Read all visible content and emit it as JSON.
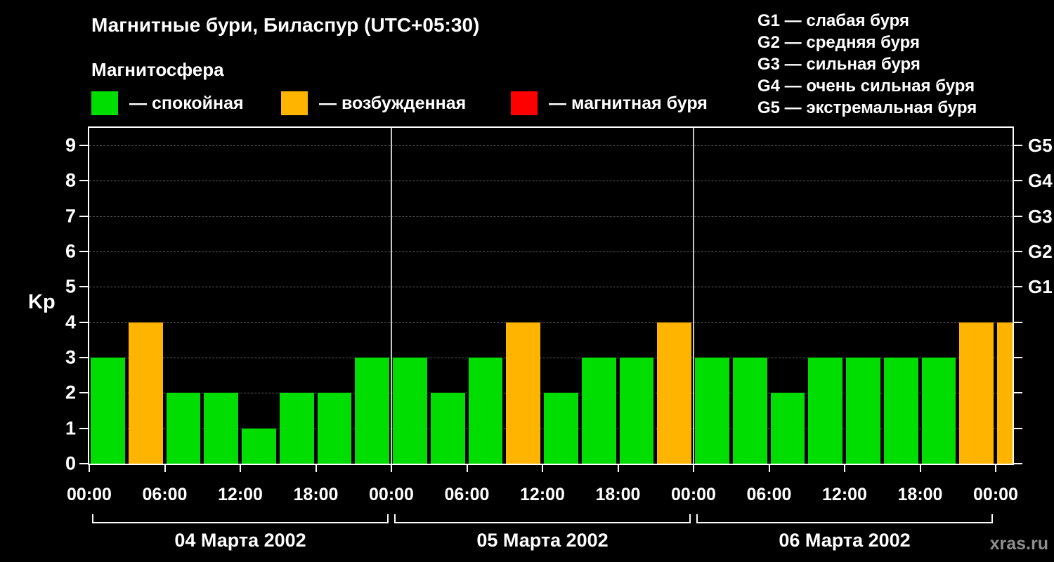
{
  "title": "Магнитные бури, Биласпур (UTC+05:30)",
  "legend": {
    "heading": "Магнитосфера",
    "items": [
      {
        "name": "quiet",
        "label": "— спокойная",
        "color": "#00dd00"
      },
      {
        "name": "excited",
        "label": "— возбужденная",
        "color": "#ffb400"
      },
      {
        "name": "storm",
        "label": "— магнитная буря",
        "color": "#ff0000"
      }
    ]
  },
  "storm_legend": [
    "G1 — слабая буря",
    "G2 — средняя буря",
    "G3 — сильная буря",
    "G4 — очень сильная буря",
    "G5 — экстремальная буря"
  ],
  "watermark": "xras.ru",
  "chart_data": {
    "type": "bar",
    "title": "Магнитные бури, Биласпур (UTC+05:30)",
    "ylabel": "Kp",
    "ylim": [
      0,
      9.5
    ],
    "yticks": [
      0,
      1,
      2,
      3,
      4,
      5,
      6,
      7,
      8,
      9
    ],
    "right_axis": [
      {
        "value": 9,
        "label": "G5"
      },
      {
        "value": 8,
        "label": "G4"
      },
      {
        "value": 7,
        "label": "G3"
      },
      {
        "value": 6,
        "label": "G2"
      },
      {
        "value": 5,
        "label": "G1"
      }
    ],
    "x_tick_labels": [
      "00:00",
      "06:00",
      "12:00",
      "18:00",
      "00:00",
      "06:00",
      "12:00",
      "18:00",
      "00:00",
      "06:00",
      "12:00",
      "18:00",
      "00:00"
    ],
    "bar_interval_hours": 3,
    "days": [
      {
        "date": "04 Марта 2002",
        "values": [
          3,
          4,
          2,
          2,
          1,
          2,
          2,
          3
        ]
      },
      {
        "date": "05 Марта 2002",
        "values": [
          3,
          2,
          3,
          4,
          2,
          3,
          3,
          4
        ]
      },
      {
        "date": "06 Марта 2002",
        "values": [
          3,
          3,
          2,
          3,
          3,
          3,
          3,
          4
        ]
      }
    ],
    "partial_next": {
      "value": 4
    },
    "colors": {
      "quiet": "#00dd00",
      "excited": "#ffb400",
      "storm": "#ff0000"
    },
    "color_rule": {
      "quiet_max": 3,
      "excited_max": 4
    },
    "grid": "dashed horizontal gridlines at each Kp integer, solid vertical day separators",
    "legend_position": "top"
  }
}
